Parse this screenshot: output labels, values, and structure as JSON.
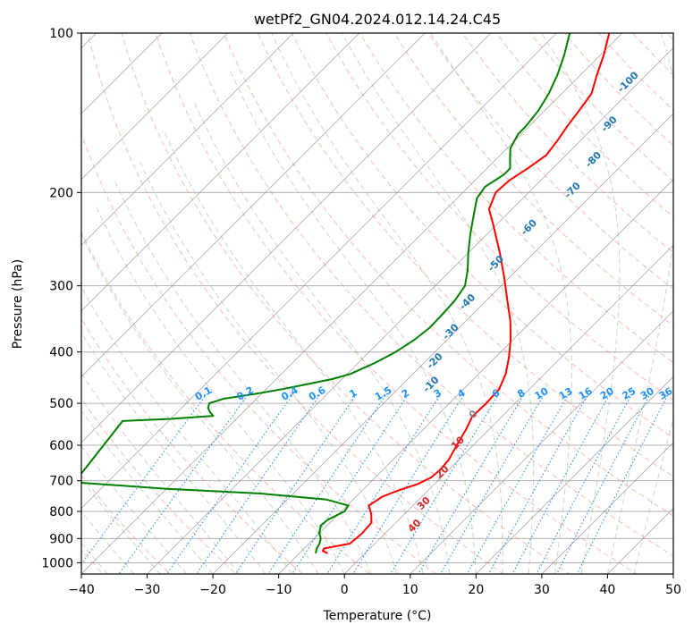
{
  "chart_data": {
    "type": "line",
    "title": "wetPf2_GN04.2024.012.14.24.C45",
    "xlabel": "Temperature (°C)",
    "ylabel": "Pressure (hPa)",
    "xlim": [
      -40,
      50
    ],
    "ylim": [
      1050,
      100
    ],
    "y_scale": "log",
    "x_ticks": [
      -40,
      -30,
      -20,
      -10,
      0,
      10,
      20,
      30,
      40,
      50
    ],
    "x_tick_labels": [
      "−40",
      "−30",
      "−20",
      "−10",
      "0",
      "10",
      "20",
      "30",
      "40",
      "50"
    ],
    "y_ticks": [
      1000,
      900,
      800,
      700,
      600,
      500,
      400,
      300,
      200,
      100
    ],
    "y_tick_labels": [
      "1000",
      "900",
      "800",
      "700",
      "600",
      "500",
      "400",
      "300",
      "200",
      "100"
    ],
    "grid": true,
    "skew_isotherms": true,
    "temperature_color": "#ff0000",
    "dewpoint_color": "#008000",
    "dry_adiabat_color": "#fa8072",
    "moist_adiabat_color": "#8fbc8f",
    "mixing_ratio_color": "#1e90ff",
    "isotherm_color": "#808080",
    "series": [
      {
        "color": "#ff0000",
        "points": [
          {
            "p": 960,
            "t": -5.7
          },
          {
            "p": 950,
            "t": -6.8
          },
          {
            "p": 940,
            "t": -7.0
          },
          {
            "p": 920,
            "t": -3.8
          },
          {
            "p": 880,
            "t": -3.5
          },
          {
            "p": 840,
            "t": -3.7
          },
          {
            "p": 810,
            "t": -5.0
          },
          {
            "p": 780,
            "t": -6.7
          },
          {
            "p": 750,
            "t": -6.0
          },
          {
            "p": 730,
            "t": -4.5
          },
          {
            "p": 710,
            "t": -2.5
          },
          {
            "p": 690,
            "t": -1.5
          },
          {
            "p": 670,
            "t": -1.3
          },
          {
            "p": 640,
            "t": -1.5
          },
          {
            "p": 600,
            "t": -2.5
          },
          {
            "p": 560,
            "t": -3.5
          },
          {
            "p": 530,
            "t": -4.5
          },
          {
            "p": 500,
            "t": -4.4
          },
          {
            "p": 470,
            "t": -4.6
          },
          {
            "p": 440,
            "t": -5.9
          },
          {
            "p": 410,
            "t": -7.9
          },
          {
            "p": 380,
            "t": -10.3
          },
          {
            "p": 350,
            "t": -13.2
          },
          {
            "p": 320,
            "t": -16.8
          },
          {
            "p": 290,
            "t": -20.7
          },
          {
            "p": 260,
            "t": -25.2
          },
          {
            "p": 230,
            "t": -30.5
          },
          {
            "p": 215,
            "t": -33.5
          },
          {
            "p": 200,
            "t": -35.0
          },
          {
            "p": 190,
            "t": -34.8
          },
          {
            "p": 180,
            "t": -33.8
          },
          {
            "p": 170,
            "t": -33.0
          },
          {
            "p": 160,
            "t": -33.5
          },
          {
            "p": 150,
            "t": -34.2
          },
          {
            "p": 140,
            "t": -34.8
          },
          {
            "p": 130,
            "t": -35.5
          },
          {
            "p": 120,
            "t": -37.5
          },
          {
            "p": 110,
            "t": -39.5
          },
          {
            "p": 100,
            "t": -42.0
          }
        ]
      },
      {
        "color": "#008000",
        "points": [
          {
            "p": 960,
            "t": -7.5
          },
          {
            "p": 940,
            "t": -8.1
          },
          {
            "p": 920,
            "t": -8.4
          },
          {
            "p": 900,
            "t": -9.0
          },
          {
            "p": 880,
            "t": -10.0
          },
          {
            "p": 850,
            "t": -11.0
          },
          {
            "p": 830,
            "t": -10.8
          },
          {
            "p": 800,
            "t": -9.5
          },
          {
            "p": 780,
            "t": -9.8
          },
          {
            "p": 760,
            "t": -14.0
          },
          {
            "p": 740,
            "t": -25.0
          },
          {
            "p": 725,
            "t": -40.0
          },
          {
            "p": 705,
            "t": -55.0
          },
          {
            "p": 540,
            "t": -57.0
          },
          {
            "p": 535,
            "t": -50.0
          },
          {
            "p": 528,
            "t": -44.0
          },
          {
            "p": 520,
            "t": -45.0
          },
          {
            "p": 510,
            "t": -46.0
          },
          {
            "p": 500,
            "t": -46.5
          },
          {
            "p": 490,
            "t": -45.0
          },
          {
            "p": 480,
            "t": -41.0
          },
          {
            "p": 470,
            "t": -37.5
          },
          {
            "p": 460,
            "t": -34.5
          },
          {
            "p": 450,
            "t": -31.5
          },
          {
            "p": 440,
            "t": -29.5
          },
          {
            "p": 420,
            "t": -27.5
          },
          {
            "p": 400,
            "t": -26.0
          },
          {
            "p": 380,
            "t": -25.0
          },
          {
            "p": 360,
            "t": -24.5
          },
          {
            "p": 340,
            "t": -24.6
          },
          {
            "p": 320,
            "t": -24.8
          },
          {
            "p": 300,
            "t": -25.5
          },
          {
            "p": 280,
            "t": -27.5
          },
          {
            "p": 260,
            "t": -30.0
          },
          {
            "p": 240,
            "t": -32.5
          },
          {
            "p": 220,
            "t": -35.0
          },
          {
            "p": 205,
            "t": -37.0
          },
          {
            "p": 195,
            "t": -37.5
          },
          {
            "p": 190,
            "t": -37.0
          },
          {
            "p": 185,
            "t": -36.5
          },
          {
            "p": 180,
            "t": -36.5
          },
          {
            "p": 175,
            "t": -37.5
          },
          {
            "p": 170,
            "t": -38.5
          },
          {
            "p": 165,
            "t": -39.5
          },
          {
            "p": 160,
            "t": -40.0
          },
          {
            "p": 155,
            "t": -40.5
          },
          {
            "p": 150,
            "t": -40.5
          },
          {
            "p": 140,
            "t": -41.0
          },
          {
            "p": 130,
            "t": -42.0
          },
          {
            "p": 120,
            "t": -43.5
          },
          {
            "p": 110,
            "t": -45.5
          },
          {
            "p": 100,
            "t": -48.0
          }
        ]
      }
    ],
    "theta_labels": [
      "-100",
      "-90",
      "-80",
      "-70",
      "-60",
      "-50",
      "-40",
      "-30",
      "-20",
      "-10",
      "0",
      "10",
      "20",
      "30",
      "40"
    ],
    "mixing_ratio_labels": [
      "0.1",
      "0.2",
      "0.4",
      "0.6",
      "1",
      "1.5",
      "2",
      "3",
      "4",
      "6",
      "8",
      "10",
      "13",
      "16",
      "20",
      "25",
      "30",
      "36"
    ]
  }
}
